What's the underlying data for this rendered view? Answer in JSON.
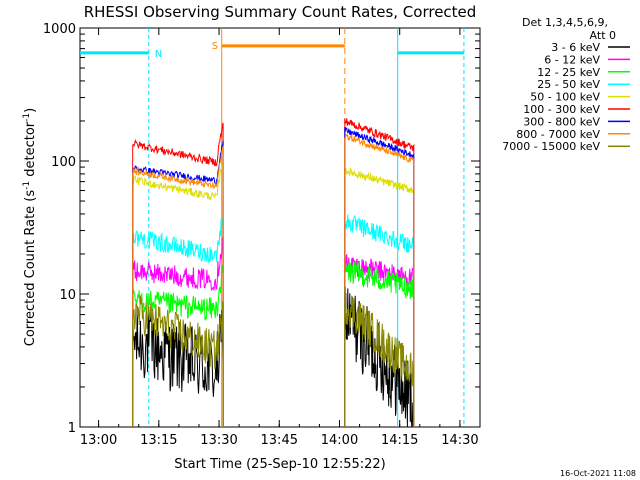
{
  "chart_data": {
    "type": "line",
    "title": "RHESSI Observing Summary Count Rates, Corrected",
    "xlabel": "Start Time (25-Sep-10 12:55:22)",
    "ylabel": "Corrected Count Rate (s",
    "ylabel_sup": "-1",
    "ylabel_tail": " detector",
    "ylabel_sup2": "-1",
    "ylabel_close": ")",
    "y_scale": "log",
    "ylim": [
      1,
      1000
    ],
    "xlim": [
      "12:55:22",
      "14:35:00"
    ],
    "x_ticks": [
      "13:00",
      "13:15",
      "13:30",
      "13:45",
      "14:00",
      "14:15",
      "14:30"
    ],
    "y_ticks": [
      "1",
      "10",
      "100",
      "1000"
    ],
    "legend_header": [
      "Det 1,3,4,5,6,9,",
      "Att 0"
    ],
    "legend_position": "right",
    "timestamp": "16-Oct-2021 11:08",
    "intervals": [
      {
        "label": "",
        "type": "night",
        "color": "#00e5ff",
        "start": "12:55:22",
        "end": "13:12:30"
      },
      {
        "label": "N",
        "type": "saa_marker",
        "color": "#00e5ff",
        "start": "13:12:30",
        "end": "13:12:30"
      },
      {
        "label": "S",
        "type": "saa",
        "color": "#ff8800",
        "start": "13:30:40",
        "end": "14:01:20"
      },
      {
        "label": "",
        "type": "night",
        "color": "#00e5ff",
        "start": "14:14:30",
        "end": "14:31:00"
      }
    ],
    "segments": [
      {
        "start": "13:08:30",
        "end": "13:31:00"
      },
      {
        "start": "14:01:20",
        "end": "14:18:30"
      }
    ],
    "series": [
      {
        "name": "3 - 6 keV",
        "color": "#000000",
        "seg1": [
          4.5,
          2.5
        ],
        "seg2": [
          7.0,
          1.5
        ],
        "noise": 0.28
      },
      {
        "name": "6 - 12 keV",
        "color": "#ff00ff",
        "seg1": [
          15,
          12.5
        ],
        "seg2": [
          17,
          13
        ],
        "noise": 0.08
      },
      {
        "name": "12 - 25 keV",
        "color": "#00ff00",
        "seg1": [
          9,
          7.5
        ],
        "seg2": [
          15,
          11
        ],
        "noise": 0.09
      },
      {
        "name": "25 - 50 keV",
        "color": "#00ffff",
        "seg1": [
          27,
          19
        ],
        "seg2": [
          35,
          23
        ],
        "noise": 0.07
      },
      {
        "name": "50 - 100 keV",
        "color": "#dddd00",
        "seg1": [
          72,
          52
        ],
        "seg2": [
          85,
          60
        ],
        "noise": 0.03
      },
      {
        "name": "100 - 300 keV",
        "color": "#ff0000",
        "seg1": [
          135,
          95
        ],
        "seg2": [
          200,
          125
        ],
        "noise": 0.03
      },
      {
        "name": "300 - 800 keV",
        "color": "#0000ff",
        "seg1": [
          88,
          70
        ],
        "seg2": [
          170,
          110
        ],
        "noise": 0.025
      },
      {
        "name": "800 - 7000 keV",
        "color": "#ff8800",
        "seg1": [
          84,
          63
        ],
        "seg2": [
          155,
          100
        ],
        "noise": 0.025
      },
      {
        "name": "7000 - 15000 keV",
        "color": "#888800",
        "seg1": [
          7.5,
          3.5
        ],
        "seg2": [
          8.5,
          2.5
        ],
        "noise": 0.15
      }
    ]
  }
}
